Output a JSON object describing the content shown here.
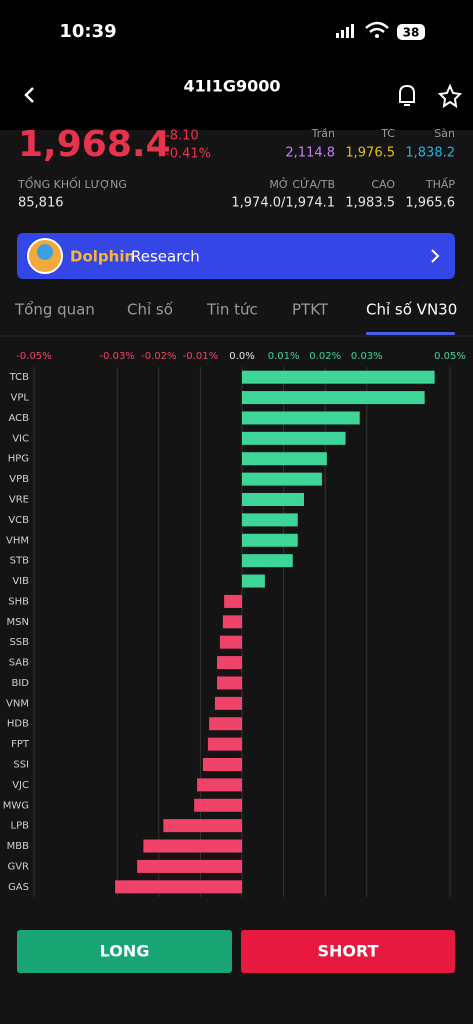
{
  "status_bar": {
    "time": "10:39",
    "battery": "38"
  },
  "header": {
    "title": "41I1G9000"
  },
  "quote": {
    "price": "1,968.4",
    "change": "-8.10",
    "change_pct": "-0.41%",
    "ceiling_label": "Trần",
    "ceiling": "2,114.8",
    "reference_label": "TC",
    "reference": "1,976.5",
    "floor_label": "Sàn",
    "floor": "1,838.2",
    "volume_label": "TỔNG KHỐI LƯỢNG",
    "volume": "85,816",
    "open_label": "MỞ CỬA/TB",
    "open": "1,974.0/1,974.1",
    "high_label": "CAO",
    "high": "1,983.5",
    "low_label": "THẤP",
    "low": "1,965.6"
  },
  "banner": {
    "brand": "Dolphin",
    "text": "Research"
  },
  "tabs": [
    "Tổng quan",
    "Chỉ số",
    "Tin tức",
    "PTKT",
    "Chỉ số VN30"
  ],
  "chart_data": {
    "type": "bar",
    "orientation": "horizontal",
    "categories": [
      "TCB",
      "VPL",
      "ACB",
      "VIC",
      "HPG",
      "VPB",
      "VRE",
      "VCB",
      "VHM",
      "STB",
      "VIB",
      "SHB",
      "MSN",
      "SSB",
      "SAB",
      "BID",
      "VNM",
      "HDB",
      "FPT",
      "SSI",
      "VJC",
      "MWG",
      "LPB",
      "MBB",
      "GVR",
      "GAS"
    ],
    "values": [
      0.0463,
      0.0439,
      0.0283,
      0.0249,
      0.0204,
      0.0192,
      0.0149,
      0.0134,
      0.0134,
      0.0122,
      0.0055,
      -0.0043,
      -0.0046,
      -0.0053,
      -0.006,
      -0.006,
      -0.0065,
      -0.0079,
      -0.0082,
      -0.0094,
      -0.0108,
      -0.0115,
      -0.0189,
      -0.0237,
      -0.0252,
      -0.0305
    ],
    "positive_color": "#3ed598",
    "negative_color": "#f0436a",
    "xlim": [
      -0.05,
      0.05
    ],
    "xticks": [
      {
        "value": -0.05,
        "label": "-0.05%"
      },
      {
        "value": -0.03,
        "label": "-0.03%"
      },
      {
        "value": -0.02,
        "label": "-0.02%"
      },
      {
        "value": -0.01,
        "label": "-0.01%"
      },
      {
        "value": 0,
        "label": "0.0%"
      },
      {
        "value": 0.01,
        "label": "0.01%"
      },
      {
        "value": 0.02,
        "label": "0.02%"
      },
      {
        "value": 0.03,
        "label": "0.03%"
      },
      {
        "value": 0.05,
        "label": "0.05%"
      }
    ],
    "grid": true
  },
  "buttons": {
    "long": "LONG",
    "short": "SHORT"
  }
}
